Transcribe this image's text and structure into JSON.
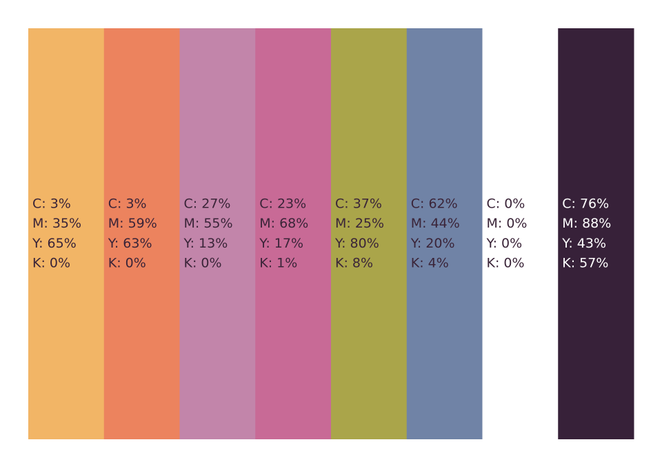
{
  "swatches": [
    {
      "color": "#f2b566",
      "lines": [
        "C: 3%",
        "M: 35%",
        "Y: 65%",
        "K: 0%"
      ]
    },
    {
      "color": "#ec835e",
      "lines": [
        "C: 3%",
        "M: 59%",
        "Y: 63%",
        "K: 0%"
      ]
    },
    {
      "color": "#c285aa",
      "lines": [
        "C: 27%",
        "M: 55%",
        "Y: 13%",
        "K: 0%"
      ]
    },
    {
      "color": "#c86a96",
      "lines": [
        "C: 23%",
        "M: 68%",
        "Y: 17%",
        "K: 1%"
      ]
    },
    {
      "color": "#aaa54a",
      "lines": [
        "C: 37%",
        "M: 25%",
        "Y: 80%",
        "K: 8%"
      ]
    },
    {
      "color": "#7083a6",
      "lines": [
        "C: 62%",
        "M: 44%",
        "Y: 20%",
        "K: 4%"
      ]
    },
    {
      "color": "#ffffff",
      "lines": [
        "C: 0%",
        "M: 0%",
        "Y: 0%",
        "K: 0%"
      ]
    },
    {
      "color": "#372139",
      "lines": [
        "C: 76%",
        "M: 88%",
        "Y: 43%",
        "K: 57%"
      ]
    }
  ]
}
